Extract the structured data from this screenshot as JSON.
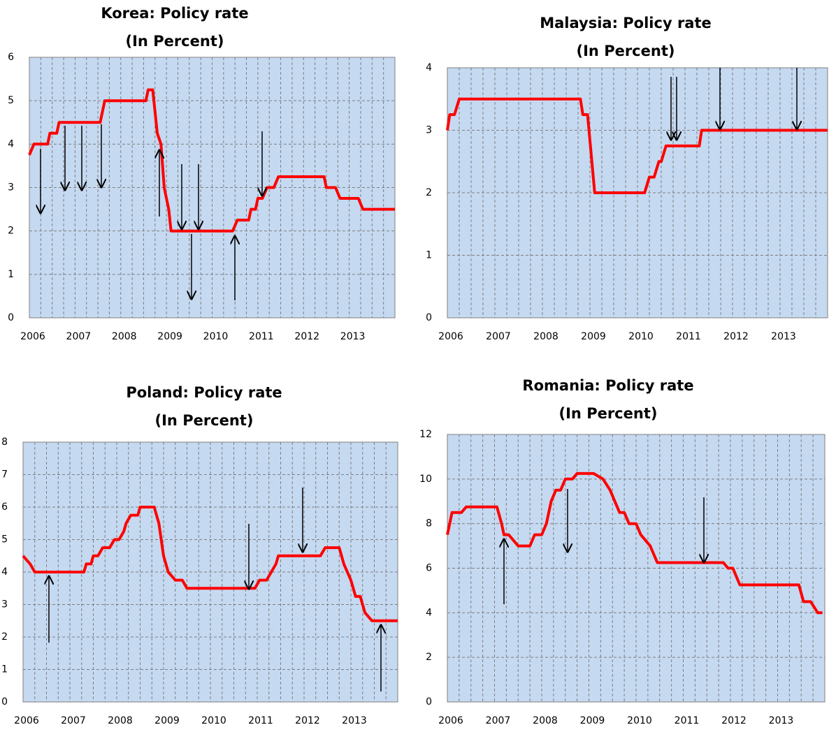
{
  "chart_data": [
    {
      "type": "line",
      "title": "Korea: Policy rate",
      "subtitle": "(In Percent)",
      "color": "#ff0000",
      "grid": true,
      "xlim": [
        2006,
        2014
      ],
      "xticks": [
        2006,
        2007,
        2008,
        2009,
        2010,
        2011,
        2012,
        2013
      ],
      "ylim": [
        0,
        6
      ],
      "yticks": [
        0,
        1,
        2,
        3,
        4,
        5,
        6
      ],
      "x": [
        2006.0,
        2006.1,
        2006.4,
        2006.45,
        2006.6,
        2006.65,
        2007.55,
        2007.6,
        2007.65,
        2008.55,
        2008.6,
        2008.7,
        2008.8,
        2008.88,
        2008.95,
        2009.05,
        2009.1,
        2010.45,
        2010.55,
        2010.8,
        2010.85,
        2010.95,
        2011.0,
        2011.1,
        2011.2,
        2011.35,
        2011.45,
        2012.45,
        2012.5,
        2012.7,
        2012.8,
        2013.2,
        2013.3,
        2014.0
      ],
      "values": [
        3.75,
        4.0,
        4.0,
        4.25,
        4.25,
        4.5,
        4.5,
        4.75,
        5.0,
        5.0,
        5.25,
        5.25,
        4.25,
        4.0,
        3.0,
        2.5,
        2.0,
        2.0,
        2.25,
        2.25,
        2.5,
        2.5,
        2.75,
        2.75,
        3.0,
        3.0,
        3.25,
        3.25,
        3.0,
        3.0,
        2.75,
        2.75,
        2.5,
        2.5
      ]
    },
    {
      "type": "line",
      "title": "Malaysia: Policy rate",
      "subtitle": "(In Percent)",
      "color": "#ff0000",
      "grid": true,
      "xlim": [
        2006,
        2014
      ],
      "xticks": [
        2006,
        2007,
        2008,
        2009,
        2010,
        2011,
        2012,
        2013
      ],
      "ylim": [
        0,
        4
      ],
      "yticks": [
        0,
        1,
        2,
        3,
        4
      ],
      "x": [
        2006.0,
        2006.05,
        2006.15,
        2006.25,
        2008.8,
        2008.85,
        2008.95,
        2009.1,
        2010.15,
        2010.25,
        2010.35,
        2010.45,
        2010.5,
        2010.6,
        2011.3,
        2011.35,
        2014.0
      ],
      "values": [
        3.0,
        3.25,
        3.25,
        3.5,
        3.5,
        3.25,
        3.25,
        2.0,
        2.0,
        2.25,
        2.25,
        2.5,
        2.5,
        2.75,
        2.75,
        3.0,
        3.0
      ]
    },
    {
      "type": "line",
      "title": "Poland: Policy rate",
      "subtitle": "(In Percent)",
      "color": "#ff0000",
      "grid": true,
      "xlim": [
        2006,
        2014
      ],
      "xticks": [
        2006,
        2007,
        2008,
        2009,
        2010,
        2011,
        2012,
        2013
      ],
      "ylim": [
        0,
        8
      ],
      "yticks": [
        0,
        1,
        2,
        3,
        4,
        5,
        6,
        7,
        8
      ],
      "x": [
        2006.0,
        2006.15,
        2006.25,
        2007.3,
        2007.35,
        2007.45,
        2007.5,
        2007.6,
        2007.7,
        2007.85,
        2007.95,
        2008.05,
        2008.15,
        2008.2,
        2008.3,
        2008.45,
        2008.5,
        2008.8,
        2008.9,
        2009.0,
        2009.1,
        2009.25,
        2009.4,
        2009.5,
        2010.95,
        2011.05,
        2011.2,
        2011.3,
        2011.4,
        2011.45,
        2012.35,
        2012.45,
        2012.75,
        2012.85,
        2013.0,
        2013.1,
        2013.2,
        2013.3,
        2013.45,
        2014.0
      ],
      "values": [
        4.5,
        4.25,
        4.0,
        4.0,
        4.25,
        4.25,
        4.5,
        4.5,
        4.75,
        4.75,
        5.0,
        5.0,
        5.25,
        5.5,
        5.75,
        5.75,
        6.0,
        6.0,
        5.5,
        4.5,
        4.0,
        3.75,
        3.75,
        3.5,
        3.5,
        3.75,
        3.75,
        4.0,
        4.25,
        4.5,
        4.5,
        4.75,
        4.75,
        4.25,
        3.75,
        3.25,
        3.25,
        2.75,
        2.5,
        2.5
      ]
    },
    {
      "type": "line",
      "title": "Romania: Policy rate",
      "subtitle": "(In Percent)",
      "color": "#ff0000",
      "grid": true,
      "xlim": [
        2006,
        2014
      ],
      "xticks": [
        2006,
        2007,
        2008,
        2009,
        2010,
        2011,
        2012,
        2013
      ],
      "ylim": [
        0,
        12
      ],
      "yticks": [
        0,
        2,
        4,
        6,
        8,
        10,
        12
      ],
      "x": [
        2006.0,
        2006.1,
        2006.3,
        2006.4,
        2007.05,
        2007.15,
        2007.2,
        2007.3,
        2007.4,
        2007.5,
        2007.75,
        2007.85,
        2008.0,
        2008.1,
        2008.2,
        2008.3,
        2008.4,
        2008.5,
        2008.65,
        2008.75,
        2009.1,
        2009.3,
        2009.45,
        2009.55,
        2009.65,
        2009.75,
        2009.85,
        2010.0,
        2010.1,
        2010.3,
        2010.45,
        2011.85,
        2011.95,
        2012.05,
        2012.2,
        2013.45,
        2013.55,
        2013.7,
        2013.85,
        2013.95
      ],
      "values": [
        7.5,
        8.5,
        8.5,
        8.75,
        8.75,
        8.0,
        7.5,
        7.5,
        7.25,
        7.0,
        7.0,
        7.5,
        7.5,
        8.0,
        9.0,
        9.5,
        9.5,
        10.0,
        10.0,
        10.25,
        10.25,
        10.0,
        9.5,
        9.0,
        8.5,
        8.5,
        8.0,
        8.0,
        7.5,
        7.0,
        6.25,
        6.25,
        6.0,
        6.0,
        5.25,
        5.25,
        4.5,
        4.5,
        4.0,
        4.0
      ]
    }
  ]
}
